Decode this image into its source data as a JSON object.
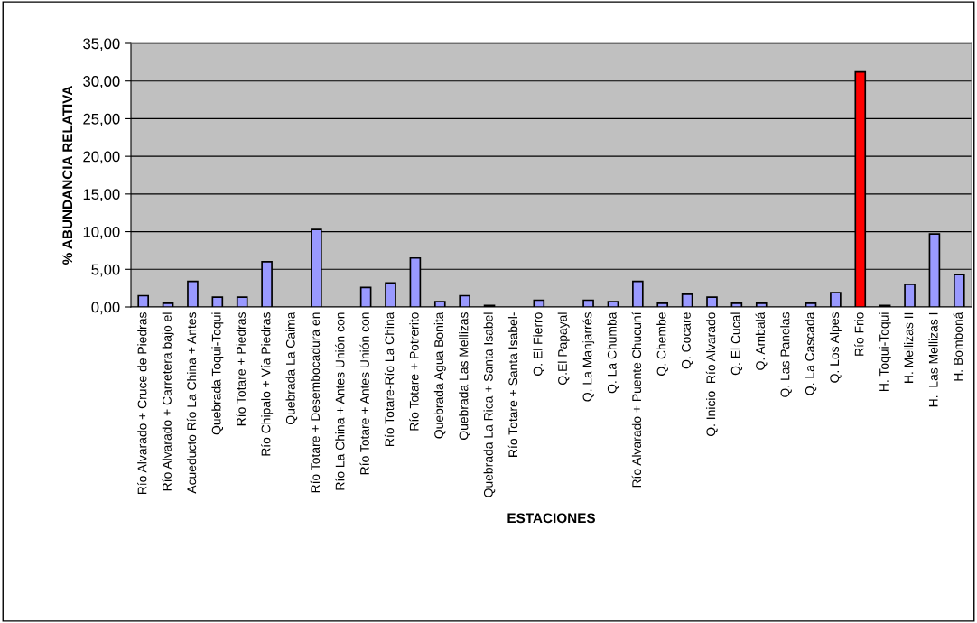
{
  "chart_data": {
    "type": "bar",
    "xlabel": "ESTACIONES",
    "ylabel": "% ABUNDANCIA RELATIVA",
    "categories": [
      "Río Alvarado + Cruce de Piedras",
      "Río Alvarado + Carretera bajo el",
      "Acueducto Río La China + Antes",
      "Quebrada Toqui-Toqui",
      "Río Totare + Piedras",
      "Río Chipalo + Vía Piedras",
      "Quebrada La Caima",
      "Río Totare + Desembocadura en",
      "Río La China + Antes Unión con",
      "Río Totare + Antes Unión con",
      "Río Totare-Río La China",
      "Río Totare + Potrerito",
      "Quebrada Agua Bonita",
      "Quebrada Las Mellizas",
      "Quebrada La Rica + Santa Isabel",
      "Río Totare + Santa Isabel-",
      "Q. El Fierro",
      "Q.El Papayal",
      "Q. La Manjarrés",
      "Q. La Chumba",
      "Río Alvarado + Puente Chucuní",
      "Q. Chembe",
      "Q. Cocare",
      "Q. Inicio  Río Alvarado",
      "Q. El Cucal",
      "Q. Ambalá",
      "Q. Las Panelas",
      "Q. La Cascada",
      "Q. Los Alpes",
      "Río Frio",
      "H. Toqui-Toqui",
      "H. Mellizas II",
      "H.  Las Mellizas I",
      "H. Bomboná"
    ],
    "values": [
      1.5,
      0.5,
      3.4,
      1.3,
      1.3,
      6.0,
      0,
      10.3,
      0,
      2.6,
      3.2,
      6.5,
      0.7,
      1.5,
      0.2,
      0,
      0.9,
      0,
      0.9,
      0.7,
      3.4,
      0.5,
      1.7,
      1.3,
      0.5,
      0.5,
      0,
      0.5,
      1.9,
      31.2,
      0.2,
      3.0,
      9.7,
      4.3
    ],
    "colors": [
      "#9999ff",
      "#9999ff",
      "#9999ff",
      "#9999ff",
      "#9999ff",
      "#9999ff",
      "#9999ff",
      "#9999ff",
      "#9999ff",
      "#9999ff",
      "#9999ff",
      "#9999ff",
      "#9999ff",
      "#9999ff",
      "#9999ff",
      "#9999ff",
      "#9999ff",
      "#9999ff",
      "#9999ff",
      "#9999ff",
      "#9999ff",
      "#9999ff",
      "#9999ff",
      "#9999ff",
      "#9999ff",
      "#9999ff",
      "#9999ff",
      "#9999ff",
      "#9999ff",
      "#ff0000",
      "#9999ff",
      "#9999ff",
      "#9999ff",
      "#9999ff"
    ],
    "ylim": [
      0,
      35
    ],
    "yticks": [
      {
        "value": 0,
        "label": "0,00"
      },
      {
        "value": 5,
        "label": "5,00"
      },
      {
        "value": 10,
        "label": "10,00"
      },
      {
        "value": 15,
        "label": "15,00"
      },
      {
        "value": 20,
        "label": "20,00"
      },
      {
        "value": 25,
        "label": "25,00"
      },
      {
        "value": 30,
        "label": "30,00"
      },
      {
        "value": 35,
        "label": "35,00"
      }
    ],
    "grid": "y"
  }
}
